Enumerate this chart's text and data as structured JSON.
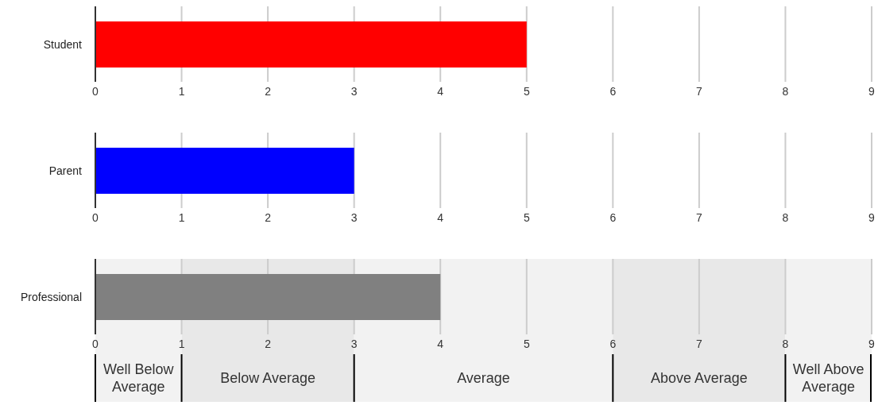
{
  "chart_data": [
    {
      "type": "bar",
      "orientation": "horizontal",
      "categories": [
        "Student"
      ],
      "values": [
        5
      ],
      "color": "#ff0000",
      "xlim": [
        0,
        9
      ],
      "xticks": [
        0,
        1,
        2,
        3,
        4,
        5,
        6,
        7,
        8,
        9
      ],
      "grid": "x"
    },
    {
      "type": "bar",
      "orientation": "horizontal",
      "categories": [
        "Parent"
      ],
      "values": [
        3
      ],
      "color": "#0000ff",
      "xlim": [
        0,
        9
      ],
      "xticks": [
        0,
        1,
        2,
        3,
        4,
        5,
        6,
        7,
        8,
        9
      ],
      "grid": "x"
    },
    {
      "type": "bar",
      "orientation": "horizontal",
      "categories": [
        "Professional"
      ],
      "values": [
        4
      ],
      "color": "#808080",
      "xlim": [
        0,
        9
      ],
      "xticks": [
        0,
        1,
        2,
        3,
        4,
        5,
        6,
        7,
        8,
        9
      ],
      "grid": "x",
      "bands": [
        {
          "axis": "x",
          "from": 0,
          "to": 1,
          "label": "Well Below Average",
          "color": "#f2f2f2"
        },
        {
          "axis": "x",
          "from": 1,
          "to": 3,
          "label": "Below Average",
          "color": "#e8e8e8"
        },
        {
          "axis": "x",
          "from": 3,
          "to": 6,
          "label": "Average",
          "color": "#f2f2f2"
        },
        {
          "axis": "x",
          "from": 6,
          "to": 8,
          "label": "Above Average",
          "color": "#e8e8e8"
        },
        {
          "axis": "x",
          "from": 8,
          "to": 9,
          "label": "Well Above Average",
          "color": "#f2f2f2"
        }
      ]
    }
  ]
}
